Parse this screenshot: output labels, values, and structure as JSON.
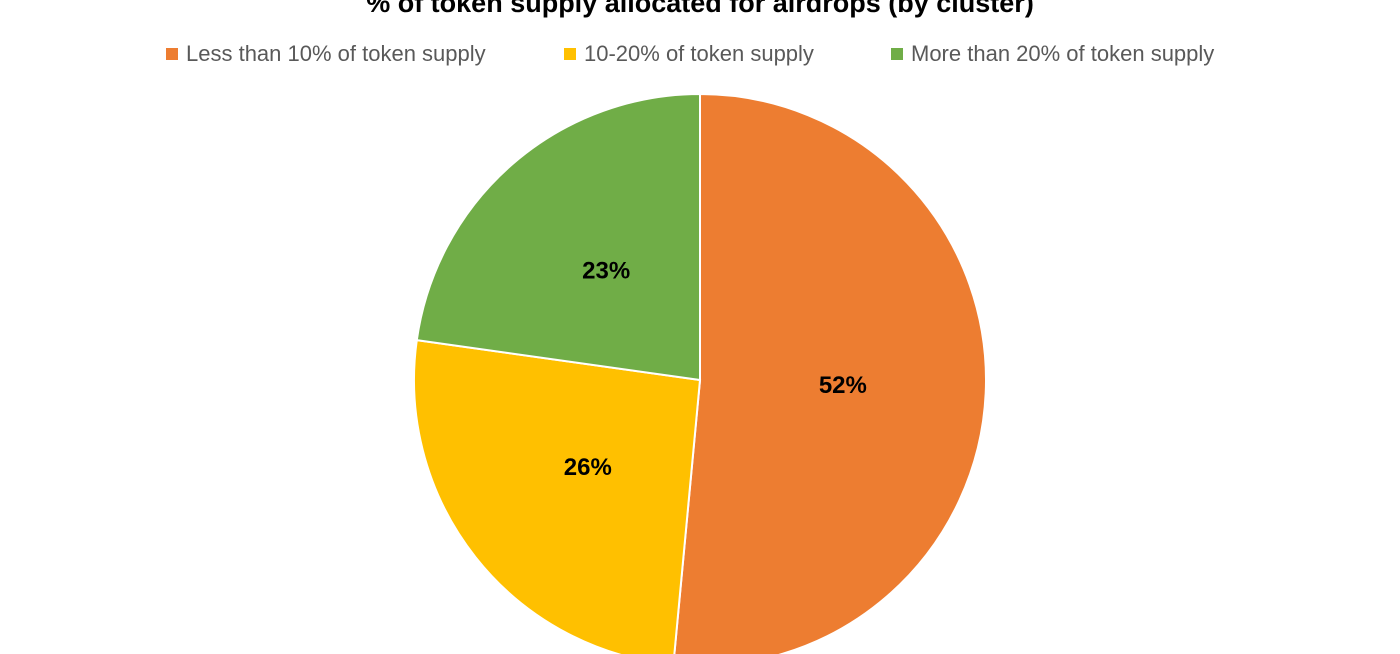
{
  "chart_data": {
    "type": "pie",
    "title": "% of token supply allocated for airdrops (by cluster)",
    "categories": [
      "Less than 10% of token supply",
      "10-20% of token supply",
      "More than 20% of token supply"
    ],
    "values": [
      52,
      26,
      23
    ],
    "value_labels": [
      "52%",
      "26%",
      "23%"
    ],
    "colors": [
      "#ED7D31",
      "#FFC000",
      "#70AD47"
    ],
    "legend": "top"
  }
}
